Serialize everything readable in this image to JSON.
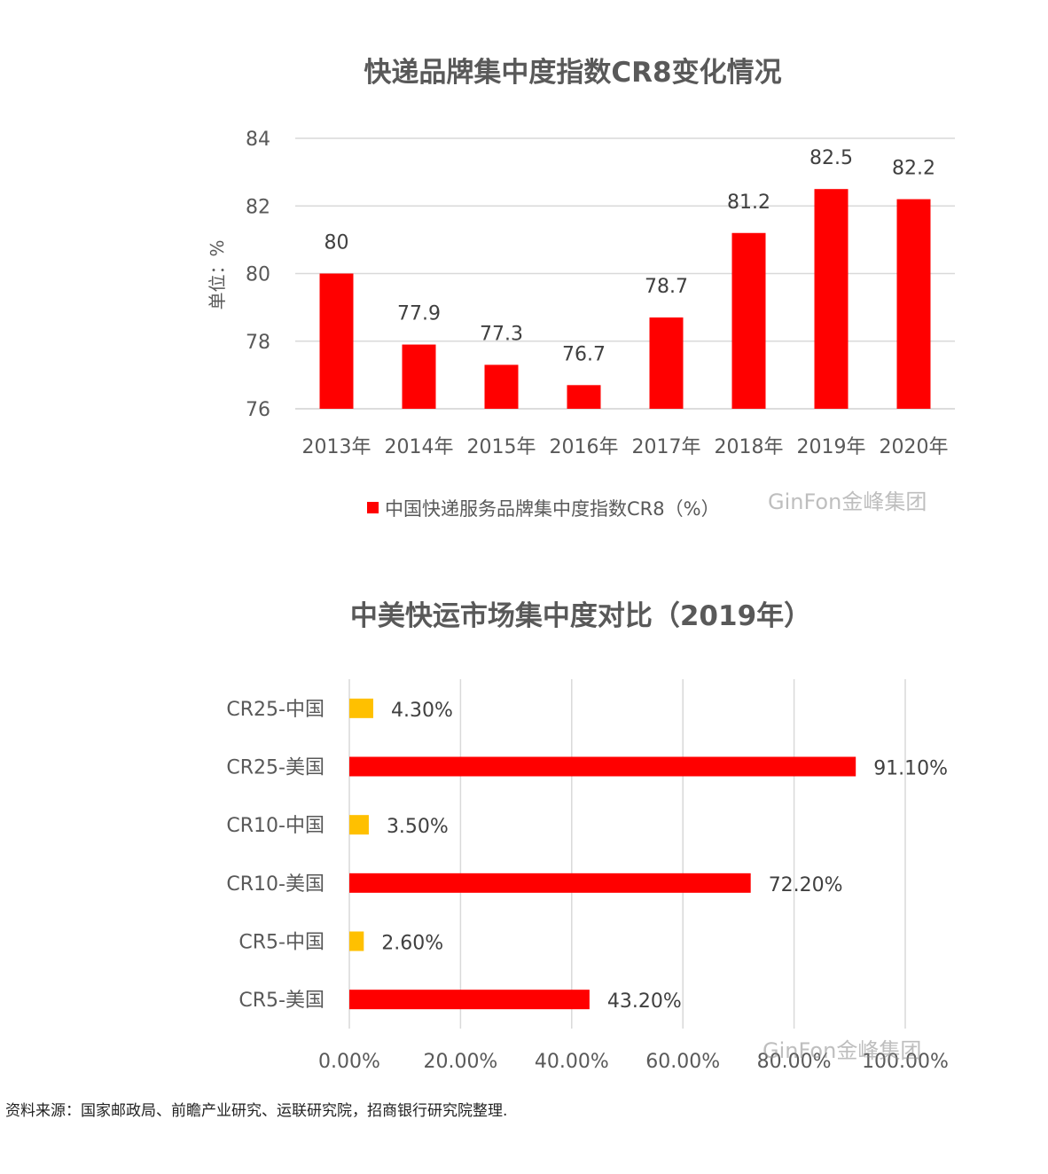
{
  "chart_data": [
    {
      "type": "bar",
      "title": "快递品牌集中度指数CR8变化情况",
      "ylabel": "单位：%",
      "categories": [
        "2013年",
        "2014年",
        "2015年",
        "2016年",
        "2017年",
        "2018年",
        "2019年",
        "2020年"
      ],
      "series": [
        {
          "name": "中国快递服务品牌集中度指数CR8（%）",
          "values": [
            80,
            77.9,
            77.3,
            76.7,
            78.7,
            81.2,
            82.5,
            82.2
          ],
          "color": "#ff0000"
        }
      ],
      "data_labels": [
        "80",
        "77.9",
        "77.3",
        "76.7",
        "78.7",
        "81.2",
        "82.5",
        "82.2"
      ],
      "yticks": [
        "76",
        "78",
        "80",
        "82",
        "84"
      ],
      "ylim": [
        76,
        84
      ],
      "grid": true,
      "legend": "bottom"
    },
    {
      "type": "bar",
      "orientation": "horizontal",
      "title": "中美快运市场集中度对比（2019年）",
      "categories": [
        "CR25-中国",
        "CR25-美国",
        "CR10-中国",
        "CR10-美国",
        "CR5-中国",
        "CR5-美国"
      ],
      "values": [
        4.3,
        91.1,
        3.5,
        72.2,
        2.6,
        43.2
      ],
      "data_labels": [
        "4.30%",
        "91.10%",
        "3.50%",
        "72.20%",
        "2.60%",
        "43.20%"
      ],
      "colors": [
        "#ffc000",
        "#ff0000",
        "#ffc000",
        "#ff0000",
        "#ffc000",
        "#ff0000"
      ],
      "xticks": [
        "0.00%",
        "20.00%",
        "40.00%",
        "60.00%",
        "80.00%",
        "100.00%"
      ],
      "xlim": [
        0,
        100
      ],
      "grid": true
    }
  ],
  "watermark": "GinFon金峰集团",
  "source": "资料来源：国家邮政局、前瞻产业研究、运联研究院，招商银行研究院整理."
}
